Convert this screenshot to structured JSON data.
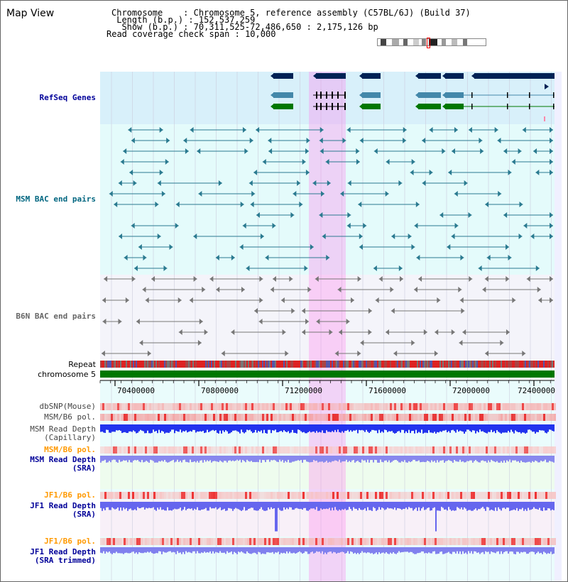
{
  "title": "Map View",
  "info": {
    "chromosome_label": "Chromosome",
    "chromosome_value": "Chromosome 5, reference assembly (C57BL/6J) (Build 37)",
    "length_label": "Length (b.p.)",
    "length_value": "152,537,259",
    "show_label": "Show (b.p.)",
    "show_value": "70,311,525-72,486,650 : 2,175,126 bp",
    "coverage_label": "Read coverage check span",
    "coverage_value": "10,000"
  },
  "tracks": {
    "refseq": "RefSeq Genes",
    "msm_bac": "MSM BAC end pairs",
    "b6n_bac": "B6N BAC end pairs",
    "repeat": "Repeat",
    "chromosome": "chromosome 5",
    "dbsnp": "dbSNP(Mouse)",
    "msm_b6_pol_1": "MSM/B6 pol.",
    "msm_depth_cap_1": "MSM Read Depth",
    "msm_depth_cap_2": "(Capillary)",
    "msm_b6_pol_2": "MSM/B6 pol.",
    "msm_depth_sra_1": "MSM Read Depth",
    "msm_depth_sra_2": "(SRA)",
    "jf1_b6_pol_1": "JF1/B6 pol.",
    "jf1_depth_sra_1": "JF1 Read Depth",
    "jf1_depth_sra_2": "(SRA)",
    "jf1_b6_pol_2": "JF1/B6 pol.",
    "jf1_depth_trim_1": "JF1 Read Depth",
    "jf1_depth_trim_2": "(SRA trimmed)"
  },
  "axis": {
    "ticks": [
      "70400000",
      "70800000",
      "71200000",
      "71600000",
      "72000000",
      "72400000"
    ]
  },
  "colors": {
    "refseq_label": "#000099",
    "msm_label": "#006680",
    "b6n_label": "#666666",
    "orange_label": "#ff9900",
    "blue_label": "#000099",
    "highlight": "#ff88ee",
    "gene_dark": "#002255",
    "gene_mid": "#4488aa",
    "gene_green": "#007700",
    "chromosome_bar": "#007700"
  }
}
